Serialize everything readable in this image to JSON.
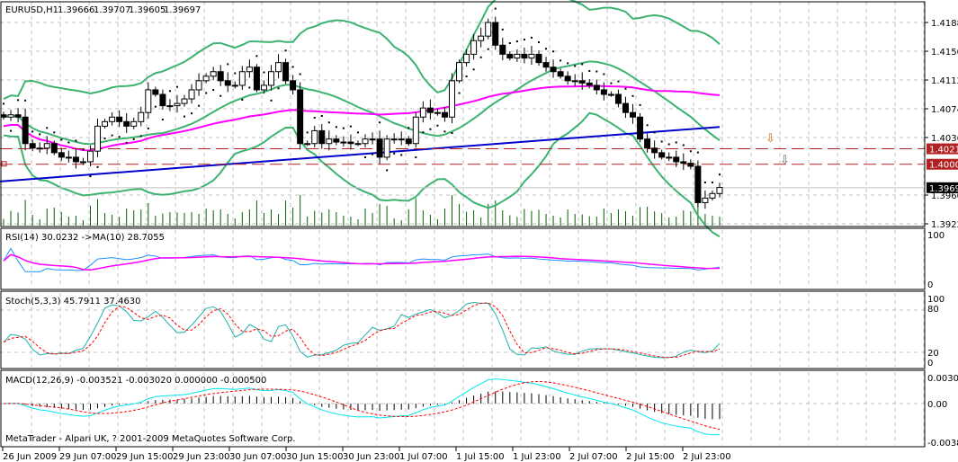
{
  "header": {
    "symbol": "EURUSD,H1",
    "open": "1.39666",
    "high": "1.39707",
    "low": "1.39605",
    "close": "1.39697"
  },
  "price_axis": {
    "ticks": [
      "1.41880",
      "1.41500",
      "1.41120",
      "1.40740",
      "1.40360",
      "1.39600",
      "1.39220"
    ],
    "tick_values": [
      1.4188,
      1.415,
      1.4112,
      1.4074,
      1.4036,
      1.396,
      1.3922
    ],
    "level_labels": [
      "1.40211",
      "1.40007"
    ],
    "level_values": [
      1.40211,
      1.40007
    ],
    "current_label": "1.39697",
    "current_value": 1.39697
  },
  "colors": {
    "bull": "#ffffff",
    "bear": "#000000",
    "bands": "#3cb371",
    "ma_fast": "#ff00ff",
    "ma_slow": "#0000cd",
    "level": "#b22222",
    "volume": "#006400",
    "rsi": "#1e90ff",
    "stoch_main": "#20b2aa",
    "stoch_signal": "#ff0000",
    "macd_main": "#00e5ee",
    "macd_signal": "#ff0000"
  },
  "closes": [
    1.4063,
    1.4066,
    1.4063,
    1.4028,
    1.4022,
    1.4022,
    1.4028,
    1.4016,
    1.401,
    1.401,
    1.4004,
    1.4004,
    1.4018,
    1.4051,
    1.4057,
    1.4063,
    1.4057,
    1.4051,
    1.4057,
    1.4069,
    1.4099,
    1.4093,
    1.4078,
    1.4078,
    1.4081,
    1.4087,
    1.4099,
    1.4111,
    1.4117,
    1.4123,
    1.4111,
    1.4105,
    1.4105,
    1.4123,
    1.4129,
    1.4099,
    1.4105,
    1.4123,
    1.4135,
    1.4111,
    1.4099,
    1.4028,
    1.4028,
    1.4045,
    1.4028,
    1.4034,
    1.403,
    1.403,
    1.4028,
    1.4028,
    1.4034,
    1.4034,
    1.401,
    1.4034,
    1.4034,
    1.4034,
    1.4028,
    1.4063,
    1.4075,
    1.4069,
    1.4069,
    1.4063,
    1.4111,
    1.4135,
    1.4146,
    1.4164,
    1.417,
    1.4188,
    1.4158,
    1.4146,
    1.4141,
    1.4146,
    1.4141,
    1.4146,
    1.4135,
    1.4129,
    1.4123,
    1.4117,
    1.4111,
    1.4111,
    1.4108,
    1.4105,
    1.4099,
    1.4093,
    1.4093,
    1.4081,
    1.4069,
    1.4063,
    1.4034,
    1.4022,
    1.4016,
    1.401,
    1.401,
    1.4004,
    1.4002,
    1.3998,
    1.395,
    1.3956,
    1.3962,
    1.397
  ],
  "ma_slow_range": [
    1.3978,
    1.405
  ],
  "indicators": {
    "rsi": {
      "label": "RSI(14) 30.0232  ->MA(10) 28.7055",
      "ticks": [
        "100",
        "0"
      ]
    },
    "stoch": {
      "label": "Stoch(5,3,3) 45.7911 37.4630",
      "ticks": [
        "100",
        "80",
        "20",
        "0"
      ]
    },
    "macd": {
      "label": "MACD(12,26,9) -0.003521 -0.003020 0.000000 -0.000500",
      "ticks": [
        "0.003071",
        "0.00",
        "-0.00387"
      ]
    }
  },
  "footer": {
    "copyright": "MetaTrader - Alpari UK, ? 2001-2009 MetaQuotes Software Corp."
  },
  "time_axis": [
    "26 Jun 2009",
    "29 Jun 07:00",
    "29 Jun 15:00",
    "29 Jun 23:00",
    "30 Jun 07:00",
    "30 Jun 15:00",
    "30 Jun 23:00",
    "1 Jul 07:00",
    "1 Jul 15:00",
    "1 Jul 23:00",
    "2 Jul 07:00",
    "2 Jul 15:00",
    "2 Jul 23:00"
  ]
}
